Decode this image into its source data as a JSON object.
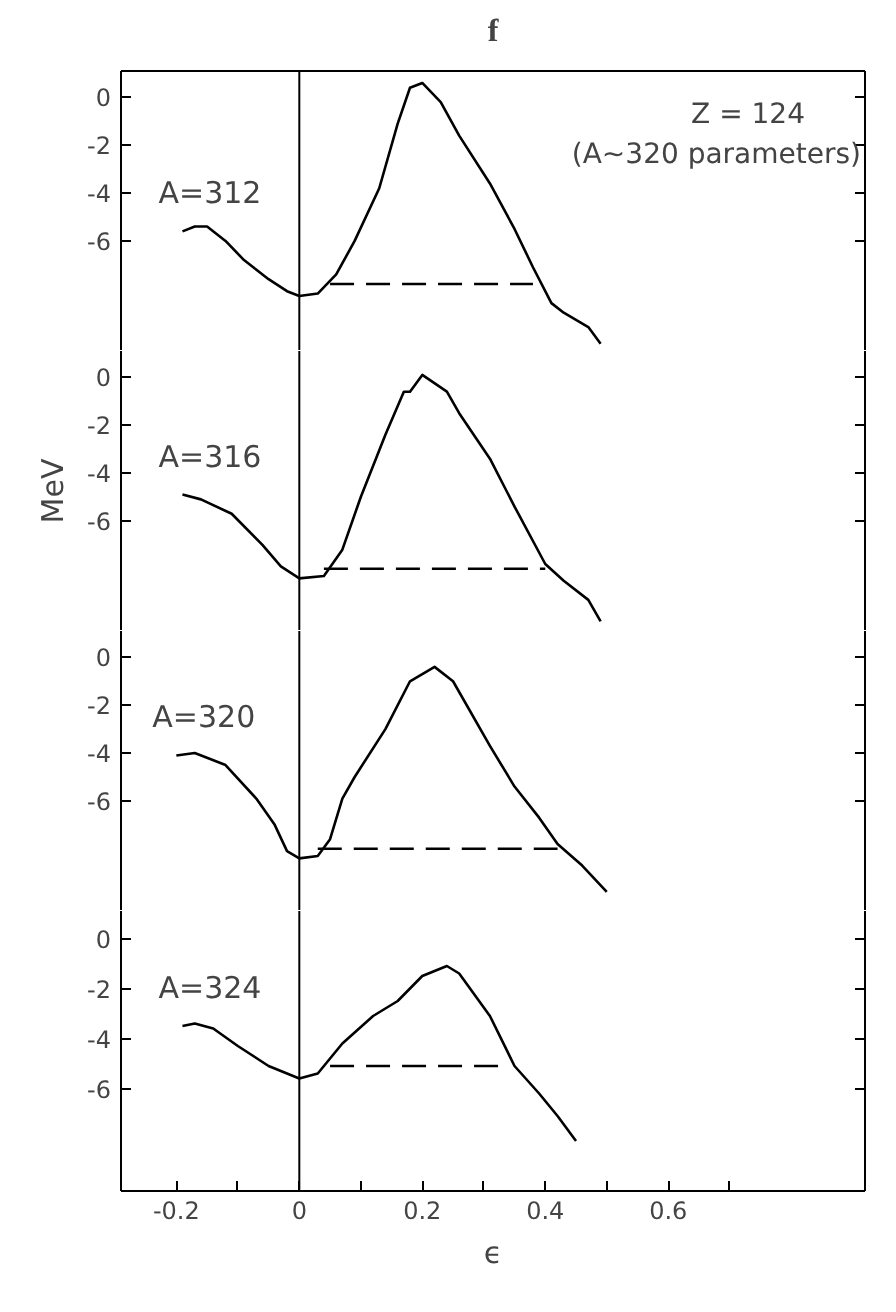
{
  "chart_data": [
    {
      "type": "line",
      "title": "f",
      "annotations": [
        "Z = 124",
        "(A∼320 parameters)"
      ],
      "xlim": [
        -0.29,
        0.92
      ],
      "ylim": [
        -10.6,
        1.1
      ],
      "yticks": [
        0,
        -2,
        -4,
        -6
      ],
      "tick_labels": "y",
      "grid": false,
      "line_style": "solid",
      "ref_lines": [
        {
          "axis": "x",
          "value": 0,
          "label": null
        }
      ],
      "series": [
        {
          "name": "A=312",
          "color": "#000000",
          "x": [
            -0.19,
            -0.17,
            -0.15,
            -0.12,
            -0.09,
            -0.05,
            -0.02,
            0,
            0.03,
            0.06,
            0.09,
            0.13,
            0.16,
            0.18,
            0.2,
            0.23,
            0.26,
            0.31,
            0.35,
            0.38,
            0.41,
            0.43,
            0.47,
            0.49
          ],
          "values": [
            -5.6,
            -5.4,
            -5.4,
            -6.0,
            -6.8,
            -7.6,
            -8.1,
            -8.3,
            -8.2,
            -7.4,
            -6.0,
            -3.8,
            -1.1,
            0.4,
            0.6,
            -0.2,
            -1.6,
            -3.6,
            -5.5,
            -7.1,
            -8.6,
            -9.0,
            -9.6,
            -10.3
          ]
        },
        {
          "color": "#000000",
          "line_style": "dashed",
          "x": [
            0.05,
            0.38
          ],
          "values": [
            -7.8,
            -7.8
          ]
        }
      ]
    },
    {
      "type": "line",
      "ylabel": "MeV",
      "xlim": [
        -0.29,
        0.92
      ],
      "ylim": [
        -10.6,
        1.1
      ],
      "yticks": [
        0,
        -2,
        -4,
        -6
      ],
      "tick_labels": "y",
      "grid": false,
      "line_style": "solid",
      "ref_lines": [
        {
          "axis": "x",
          "value": 0,
          "label": null
        }
      ],
      "series": [
        {
          "name": "A=316",
          "color": "#000000",
          "x": [
            -0.19,
            -0.16,
            -0.11,
            -0.06,
            -0.03,
            0,
            0.04,
            0.07,
            0.1,
            0.14,
            0.17,
            0.18,
            0.2,
            0.24,
            0.26,
            0.31,
            0.35,
            0.4,
            0.43,
            0.47,
            0.49
          ],
          "values": [
            -4.9,
            -5.1,
            -5.7,
            -7.0,
            -7.9,
            -8.4,
            -8.3,
            -7.2,
            -5.0,
            -2.4,
            -0.6,
            -0.6,
            0.1,
            -0.6,
            -1.5,
            -3.4,
            -5.4,
            -7.8,
            -8.5,
            -9.3,
            -10.2
          ]
        },
        {
          "color": "#000000",
          "line_style": "dashed",
          "x": [
            0.04,
            0.4
          ],
          "values": [
            -8.0,
            -8.0
          ]
        }
      ]
    },
    {
      "type": "line",
      "xlim": [
        -0.29,
        0.92
      ],
      "ylim": [
        -10.6,
        1.1
      ],
      "yticks": [
        0,
        -2,
        -4,
        -6
      ],
      "tick_labels": "y",
      "grid": false,
      "line_style": "solid",
      "ref_lines": [
        {
          "axis": "x",
          "value": 0,
          "label": null
        }
      ],
      "series": [
        {
          "name": "A=320",
          "color": "#000000",
          "x": [
            -0.2,
            -0.17,
            -0.12,
            -0.07,
            -0.04,
            -0.02,
            0,
            0.03,
            0.05,
            0.07,
            0.09,
            0.14,
            0.18,
            0.22,
            0.25,
            0.31,
            0.35,
            0.39,
            0.42,
            0.46,
            0.5
          ],
          "values": [
            -4.1,
            -4.0,
            -4.5,
            -5.9,
            -7.0,
            -8.1,
            -8.4,
            -8.3,
            -7.6,
            -5.9,
            -5.0,
            -3.0,
            -1.0,
            -0.4,
            -1.0,
            -3.7,
            -5.4,
            -6.7,
            -7.8,
            -8.7,
            -9.8
          ]
        },
        {
          "color": "#000000",
          "line_style": "dashed",
          "x": [
            0.03,
            0.42
          ],
          "values": [
            -8.0,
            -8.0
          ]
        }
      ]
    },
    {
      "type": "line",
      "xlabel": "ϵ",
      "xlim": [
        -0.29,
        0.92
      ],
      "ylim": [
        -10.1,
        1.1
      ],
      "yticks": [
        0,
        -2,
        -4,
        -6
      ],
      "grid": false,
      "line_style": "solid",
      "xticks": [
        {
          "value": -0.2,
          "label": "-0.2"
        },
        {
          "value": -0.1,
          "label": null
        },
        0,
        {
          "value": 0.1,
          "label": null
        },
        {
          "value": 0.2,
          "label": "0.2"
        },
        {
          "value": 0.3,
          "label": null
        },
        {
          "value": 0.4,
          "label": "0.4"
        },
        {
          "value": 0.5,
          "label": null
        },
        {
          "value": 0.6,
          "label": "0.6"
        },
        {
          "value": 0.7,
          "label": null
        }
      ],
      "ref_lines": [
        {
          "axis": "x",
          "value": 0,
          "label": null
        }
      ],
      "series": [
        {
          "name": "A=324",
          "color": "#000000",
          "x": [
            -0.19,
            -0.17,
            -0.14,
            -0.1,
            -0.05,
            0,
            0.03,
            0.07,
            0.12,
            0.16,
            0.2,
            0.24,
            0.26,
            0.31,
            0.35,
            0.39,
            0.42,
            0.45
          ],
          "values": [
            -3.5,
            -3.4,
            -3.6,
            -4.3,
            -5.1,
            -5.6,
            -5.4,
            -4.2,
            -3.1,
            -2.5,
            -1.5,
            -1.1,
            -1.4,
            -3.1,
            -5.1,
            -6.2,
            -7.1,
            -8.1
          ]
        },
        {
          "color": "#000000",
          "line_style": "dashed",
          "x": [
            0.05,
            0.33
          ],
          "values": [
            -5.1,
            -5.1
          ]
        }
      ]
    }
  ]
}
